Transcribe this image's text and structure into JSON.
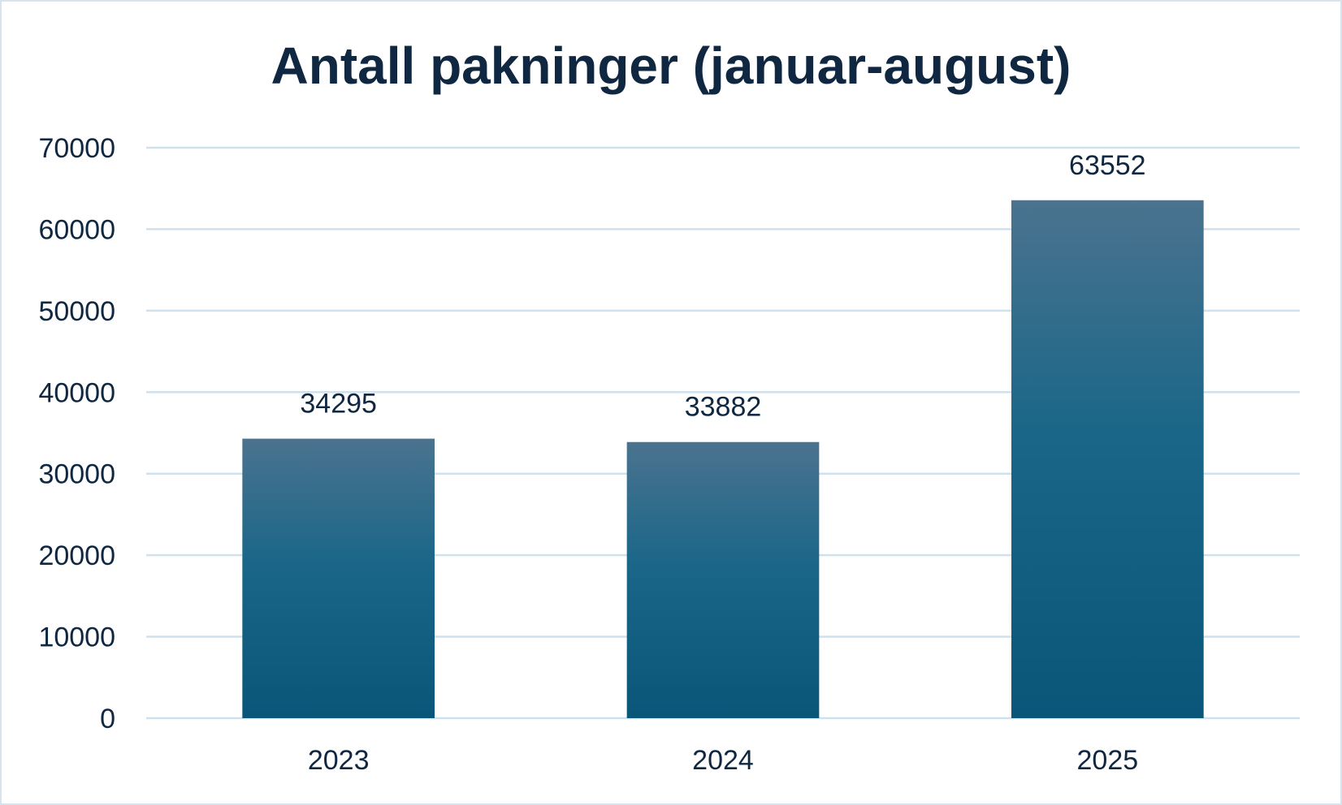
{
  "chart_data": {
    "type": "bar",
    "title": "Antall pakninger (januar-august)",
    "xlabel": "",
    "ylabel": "",
    "categories": [
      "2023",
      "2024",
      "2025"
    ],
    "values": [
      34295,
      33882,
      63552
    ],
    "data_labels": [
      "34295",
      "33882",
      "63552"
    ],
    "ylim": [
      0,
      70000
    ],
    "yticks": [
      0,
      10000,
      20000,
      30000,
      40000,
      50000,
      60000,
      70000
    ],
    "ytick_labels": [
      "0",
      "10000",
      "20000",
      "30000",
      "40000",
      "50000",
      "60000",
      "70000"
    ],
    "grid": true,
    "legend": "none",
    "colors": {
      "bar_top": "#4a738f",
      "bar_bottom": "#0a5679",
      "grid": "#cfe1ec",
      "text": "#0f2740",
      "border": "#d5e4ee"
    }
  }
}
